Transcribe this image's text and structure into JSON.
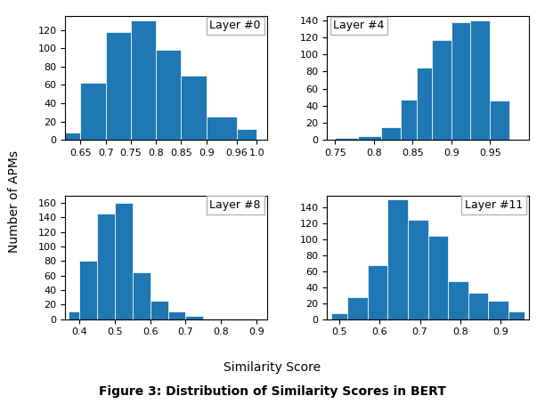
{
  "title": "Figure 3: Distribution of Similarity Scores in BERT",
  "xlabel": "Similarity Score",
  "ylabel": "Number of APMs",
  "chart_data": [
    {
      "type": "histogram",
      "annotation": "Layer #0",
      "bins": [
        0.62,
        0.65,
        0.7,
        0.75,
        0.8,
        0.85,
        0.9,
        0.96,
        1.0
      ],
      "counts": [
        8,
        62,
        118,
        130,
        98,
        70,
        25,
        12
      ],
      "xlim": [
        0.62,
        1.02
      ],
      "ylim": [
        0,
        135
      ],
      "xticks": [
        0.65,
        0.7,
        0.75,
        0.8,
        0.85,
        0.9,
        0.96,
        {
          "value": 1.0,
          "label": "1.0"
        }
      ],
      "yticks": [
        0,
        20,
        40,
        60,
        80,
        100,
        120
      ]
    },
    {
      "type": "histogram",
      "annotation": "Layer #4",
      "bins": [
        0.75,
        0.78,
        0.81,
        0.835,
        0.855,
        0.875,
        0.9,
        0.925,
        0.95,
        0.975
      ],
      "counts": [
        2,
        4,
        15,
        47,
        85,
        117,
        138,
        140,
        46
      ],
      "xlim": [
        0.74,
        1.0
      ],
      "ylim": [
        0,
        145
      ],
      "xticks": [
        0.75,
        0.8,
        0.85,
        0.9,
        0.95
      ],
      "yticks": [
        0,
        20,
        40,
        60,
        80,
        100,
        120,
        140
      ]
    },
    {
      "type": "histogram",
      "annotation": "Layer #8",
      "bins": [
        0.37,
        0.4,
        0.45,
        0.5,
        0.55,
        0.6,
        0.65,
        0.7,
        0.75,
        0.9
      ],
      "counts": [
        10,
        80,
        145,
        160,
        65,
        25,
        10,
        4,
        1
      ],
      "xlim": [
        0.36,
        0.93
      ],
      "ylim": [
        0,
        170
      ],
      "xticks": [
        0.4,
        0.5,
        0.6,
        0.7,
        0.8,
        0.9
      ],
      "yticks": [
        0,
        20,
        40,
        60,
        80,
        100,
        120,
        140,
        160
      ]
    },
    {
      "type": "histogram",
      "annotation": "Layer #11",
      "bins": [
        0.48,
        0.52,
        0.57,
        0.62,
        0.67,
        0.72,
        0.77,
        0.82,
        0.87,
        0.92,
        0.96
      ],
      "counts": [
        7,
        27,
        68,
        150,
        125,
        105,
        48,
        33,
        23,
        10
      ],
      "xlim": [
        0.47,
        0.97
      ],
      "ylim": [
        0,
        155
      ],
      "xticks": [
        0.5,
        0.6,
        0.7,
        0.8,
        0.9
      ],
      "yticks": [
        0,
        20,
        40,
        60,
        80,
        100,
        120,
        140
      ]
    }
  ]
}
